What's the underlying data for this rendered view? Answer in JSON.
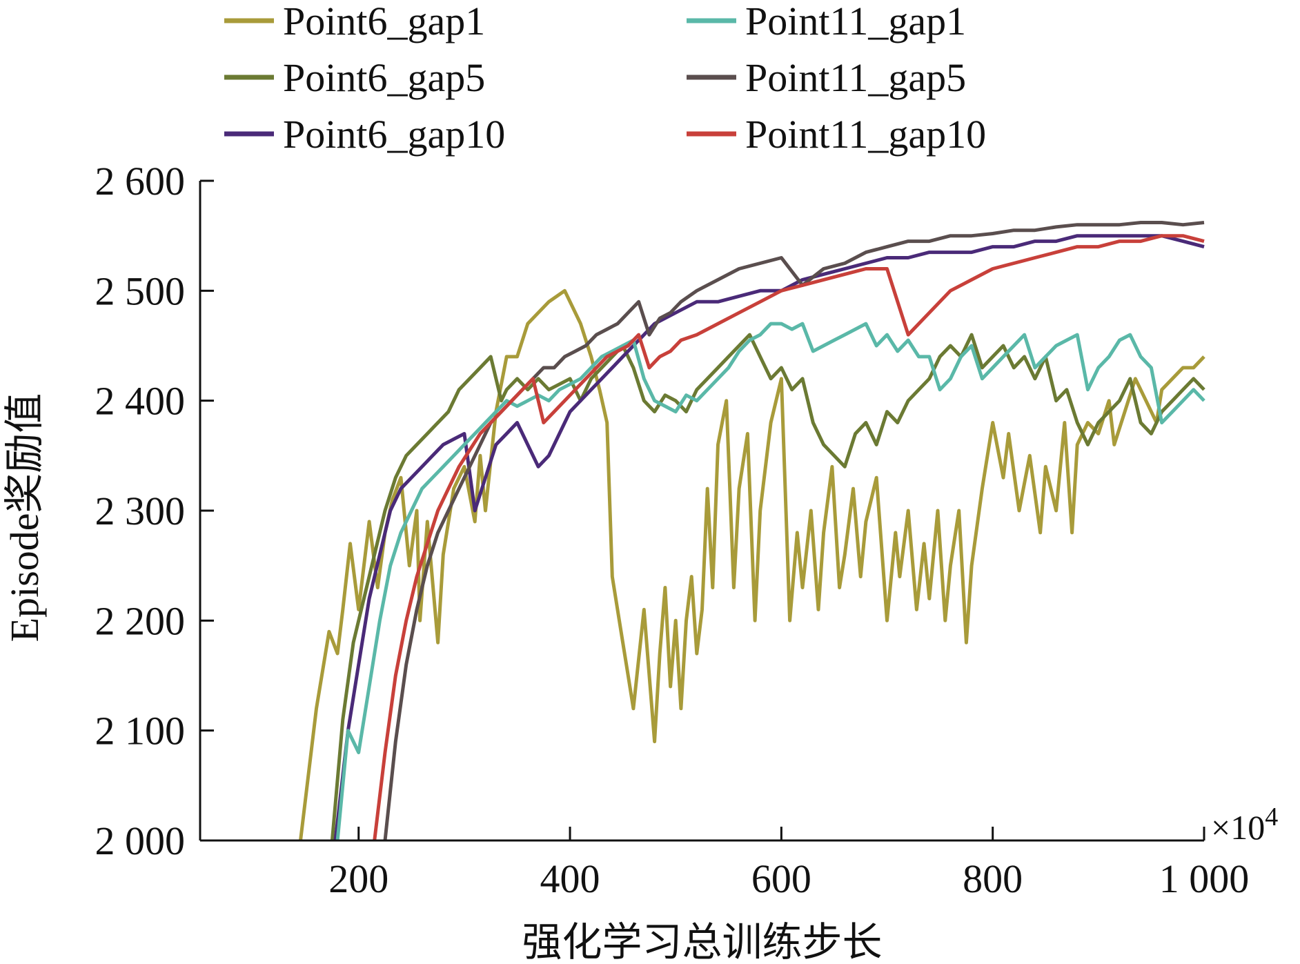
{
  "chart_data": {
    "type": "line",
    "xlabel": "强化学习总训练步长",
    "ylabel": "Episode奖励值",
    "x_multiplier_label": "×10",
    "x_multiplier_exp": "4",
    "xlim": [
      50,
      1000
    ],
    "ylim": [
      2000,
      2600
    ],
    "x_ticks": [
      200,
      400,
      600,
      800,
      1000
    ],
    "x_tick_labels": [
      "200",
      "400",
      "600",
      "800",
      "1 000"
    ],
    "y_ticks": [
      2000,
      2100,
      2200,
      2300,
      2400,
      2500,
      2600
    ],
    "y_tick_labels": [
      "2 000",
      "2 100",
      "2 200",
      "2 300",
      "2 400",
      "2 500",
      "2 600"
    ],
    "legend_position": "top",
    "grid": false,
    "series": [
      {
        "name": "Point6_gap1",
        "color": "#A89B3A",
        "x": [
          145,
          160,
          172,
          180,
          185,
          192,
          200,
          210,
          218,
          225,
          232,
          240,
          248,
          255,
          258,
          265,
          275,
          280,
          290,
          300,
          310,
          315,
          320,
          330,
          340,
          350,
          360,
          370,
          380,
          395,
          410,
          420,
          428,
          435,
          440,
          450,
          455,
          460,
          470,
          480,
          485,
          490,
          495,
          500,
          505,
          510,
          515,
          520,
          525,
          530,
          535,
          540,
          548,
          555,
          560,
          568,
          575,
          580,
          590,
          600,
          608,
          615,
          620,
          628,
          635,
          640,
          648,
          655,
          660,
          668,
          675,
          680,
          690,
          700,
          708,
          712,
          720,
          728,
          735,
          740,
          748,
          755,
          760,
          768,
          775,
          780,
          790,
          800,
          810,
          815,
          825,
          835,
          845,
          850,
          860,
          868,
          875,
          880,
          890,
          900,
          910,
          915,
          925,
          935,
          945,
          955,
          960,
          970,
          980,
          990,
          1000
        ],
        "y": [
          2000,
          2120,
          2190,
          2170,
          2210,
          2270,
          2210,
          2290,
          2230,
          2280,
          2310,
          2330,
          2250,
          2300,
          2200,
          2290,
          2180,
          2260,
          2320,
          2340,
          2290,
          2350,
          2300,
          2390,
          2440,
          2440,
          2470,
          2480,
          2490,
          2500,
          2470,
          2440,
          2410,
          2380,
          2240,
          2180,
          2150,
          2120,
          2210,
          2090,
          2170,
          2230,
          2140,
          2200,
          2120,
          2200,
          2240,
          2170,
          2210,
          2320,
          2230,
          2360,
          2400,
          2230,
          2320,
          2370,
          2200,
          2300,
          2380,
          2420,
          2200,
          2280,
          2230,
          2300,
          2210,
          2280,
          2340,
          2230,
          2260,
          2320,
          2240,
          2290,
          2330,
          2200,
          2280,
          2240,
          2300,
          2210,
          2270,
          2220,
          2300,
          2200,
          2250,
          2300,
          2180,
          2250,
          2320,
          2380,
          2330,
          2370,
          2300,
          2350,
          2280,
          2340,
          2300,
          2380,
          2280,
          2360,
          2380,
          2370,
          2400,
          2360,
          2390,
          2420,
          2400,
          2380,
          2410,
          2420,
          2430,
          2430,
          2440
        ]
      },
      {
        "name": "Point6_gap5",
        "color": "#6B7A33",
        "x": [
          175,
          185,
          195,
          205,
          215,
          225,
          235,
          245,
          255,
          265,
          275,
          285,
          295,
          305,
          315,
          325,
          335,
          340,
          350,
          360,
          370,
          380,
          390,
          400,
          410,
          420,
          430,
          440,
          450,
          460,
          470,
          480,
          490,
          500,
          510,
          520,
          530,
          540,
          550,
          560,
          570,
          580,
          590,
          600,
          610,
          620,
          630,
          640,
          650,
          660,
          670,
          680,
          690,
          700,
          710,
          720,
          730,
          740,
          750,
          760,
          770,
          780,
          790,
          800,
          810,
          820,
          830,
          840,
          850,
          860,
          870,
          880,
          890,
          900,
          910,
          920,
          930,
          940,
          950,
          960,
          970,
          980,
          990,
          1000
        ],
        "y": [
          2000,
          2110,
          2180,
          2220,
          2260,
          2300,
          2330,
          2350,
          2360,
          2370,
          2380,
          2390,
          2410,
          2420,
          2430,
          2440,
          2400,
          2410,
          2420,
          2410,
          2420,
          2410,
          2415,
          2420,
          2400,
          2420,
          2430,
          2440,
          2450,
          2430,
          2400,
          2390,
          2405,
          2400,
          2390,
          2410,
          2420,
          2430,
          2440,
          2450,
          2460,
          2440,
          2420,
          2430,
          2410,
          2420,
          2380,
          2360,
          2350,
          2340,
          2370,
          2380,
          2360,
          2390,
          2380,
          2400,
          2410,
          2420,
          2440,
          2450,
          2440,
          2460,
          2430,
          2440,
          2450,
          2430,
          2440,
          2420,
          2440,
          2400,
          2410,
          2380,
          2360,
          2380,
          2390,
          2400,
          2420,
          2380,
          2370,
          2390,
          2400,
          2410,
          2420,
          2410
        ]
      },
      {
        "name": "Point6_gap10",
        "color": "#4A2A78",
        "x": [
          178,
          190,
          200,
          210,
          220,
          230,
          240,
          250,
          260,
          270,
          280,
          290,
          300,
          310,
          320,
          330,
          340,
          350,
          360,
          370,
          380,
          390,
          400,
          410,
          420,
          430,
          440,
          450,
          460,
          470,
          480,
          500,
          520,
          540,
          560,
          580,
          600,
          620,
          640,
          660,
          680,
          700,
          720,
          740,
          760,
          780,
          800,
          820,
          840,
          860,
          880,
          900,
          920,
          940,
          960,
          980,
          1000
        ],
        "y": [
          2000,
          2100,
          2160,
          2220,
          2260,
          2300,
          2320,
          2330,
          2340,
          2350,
          2360,
          2365,
          2370,
          2300,
          2330,
          2360,
          2370,
          2380,
          2360,
          2340,
          2350,
          2370,
          2390,
          2400,
          2410,
          2420,
          2430,
          2440,
          2450,
          2460,
          2470,
          2480,
          2490,
          2490,
          2495,
          2500,
          2500,
          2510,
          2515,
          2520,
          2525,
          2530,
          2530,
          2535,
          2535,
          2535,
          2540,
          2540,
          2545,
          2545,
          2550,
          2550,
          2550,
          2550,
          2550,
          2545,
          2540
        ]
      },
      {
        "name": "Point11_gap1",
        "color": "#5AB8A8",
        "x": [
          180,
          190,
          200,
          210,
          220,
          230,
          240,
          250,
          260,
          270,
          280,
          290,
          300,
          310,
          320,
          330,
          340,
          350,
          360,
          370,
          380,
          390,
          400,
          410,
          420,
          430,
          440,
          450,
          460,
          470,
          480,
          490,
          500,
          510,
          520,
          530,
          540,
          550,
          560,
          570,
          580,
          590,
          600,
          610,
          620,
          630,
          640,
          650,
          660,
          670,
          680,
          690,
          700,
          710,
          720,
          730,
          740,
          750,
          760,
          770,
          780,
          790,
          800,
          810,
          820,
          830,
          840,
          850,
          860,
          870,
          880,
          890,
          900,
          910,
          920,
          930,
          940,
          950,
          960,
          970,
          980,
          990,
          1000
        ],
        "y": [
          2000,
          2100,
          2080,
          2140,
          2200,
          2250,
          2280,
          2300,
          2320,
          2330,
          2340,
          2350,
          2360,
          2370,
          2380,
          2390,
          2400,
          2395,
          2400,
          2405,
          2400,
          2410,
          2415,
          2420,
          2430,
          2440,
          2445,
          2450,
          2455,
          2420,
          2400,
          2395,
          2390,
          2405,
          2400,
          2410,
          2420,
          2430,
          2445,
          2455,
          2460,
          2470,
          2470,
          2465,
          2470,
          2445,
          2450,
          2455,
          2460,
          2465,
          2470,
          2450,
          2460,
          2445,
          2455,
          2440,
          2440,
          2410,
          2420,
          2440,
          2450,
          2420,
          2430,
          2440,
          2450,
          2460,
          2430,
          2440,
          2450,
          2455,
          2460,
          2410,
          2430,
          2440,
          2455,
          2460,
          2440,
          2430,
          2380,
          2390,
          2400,
          2410,
          2400
        ]
      },
      {
        "name": "Point11_gap5",
        "color": "#5A4E4E",
        "x": [
          225,
          235,
          245,
          255,
          265,
          275,
          285,
          295,
          305,
          315,
          325,
          335,
          345,
          355,
          365,
          375,
          385,
          395,
          405,
          415,
          425,
          435,
          445,
          455,
          465,
          475,
          485,
          495,
          505,
          520,
          540,
          560,
          580,
          600,
          620,
          640,
          660,
          680,
          700,
          720,
          740,
          760,
          780,
          800,
          820,
          840,
          860,
          880,
          900,
          920,
          940,
          960,
          980,
          1000
        ],
        "y": [
          2000,
          2090,
          2160,
          2210,
          2250,
          2280,
          2300,
          2320,
          2340,
          2360,
          2380,
          2390,
          2400,
          2410,
          2420,
          2430,
          2430,
          2440,
          2445,
          2450,
          2460,
          2465,
          2470,
          2480,
          2490,
          2460,
          2475,
          2480,
          2490,
          2500,
          2510,
          2520,
          2525,
          2530,
          2505,
          2520,
          2525,
          2535,
          2540,
          2545,
          2545,
          2550,
          2550,
          2552,
          2555,
          2555,
          2558,
          2560,
          2560,
          2560,
          2562,
          2562,
          2560,
          2562
        ]
      },
      {
        "name": "Point11_gap10",
        "color": "#C8403A",
        "x": [
          215,
          225,
          235,
          245,
          255,
          265,
          275,
          285,
          295,
          305,
          315,
          325,
          335,
          345,
          355,
          365,
          375,
          385,
          395,
          405,
          415,
          425,
          435,
          445,
          455,
          465,
          475,
          485,
          495,
          505,
          520,
          540,
          560,
          580,
          600,
          620,
          640,
          660,
          680,
          700,
          720,
          740,
          760,
          780,
          800,
          820,
          840,
          860,
          880,
          900,
          920,
          940,
          960,
          980,
          1000
        ],
        "y": [
          2000,
          2080,
          2150,
          2200,
          2240,
          2270,
          2300,
          2320,
          2340,
          2355,
          2370,
          2380,
          2390,
          2400,
          2410,
          2420,
          2380,
          2390,
          2400,
          2410,
          2420,
          2430,
          2440,
          2445,
          2450,
          2460,
          2430,
          2440,
          2445,
          2455,
          2460,
          2470,
          2480,
          2490,
          2500,
          2505,
          2510,
          2515,
          2520,
          2520,
          2460,
          2480,
          2500,
          2510,
          2520,
          2525,
          2530,
          2535,
          2540,
          2540,
          2545,
          2545,
          2550,
          2550,
          2545
        ]
      }
    ]
  }
}
